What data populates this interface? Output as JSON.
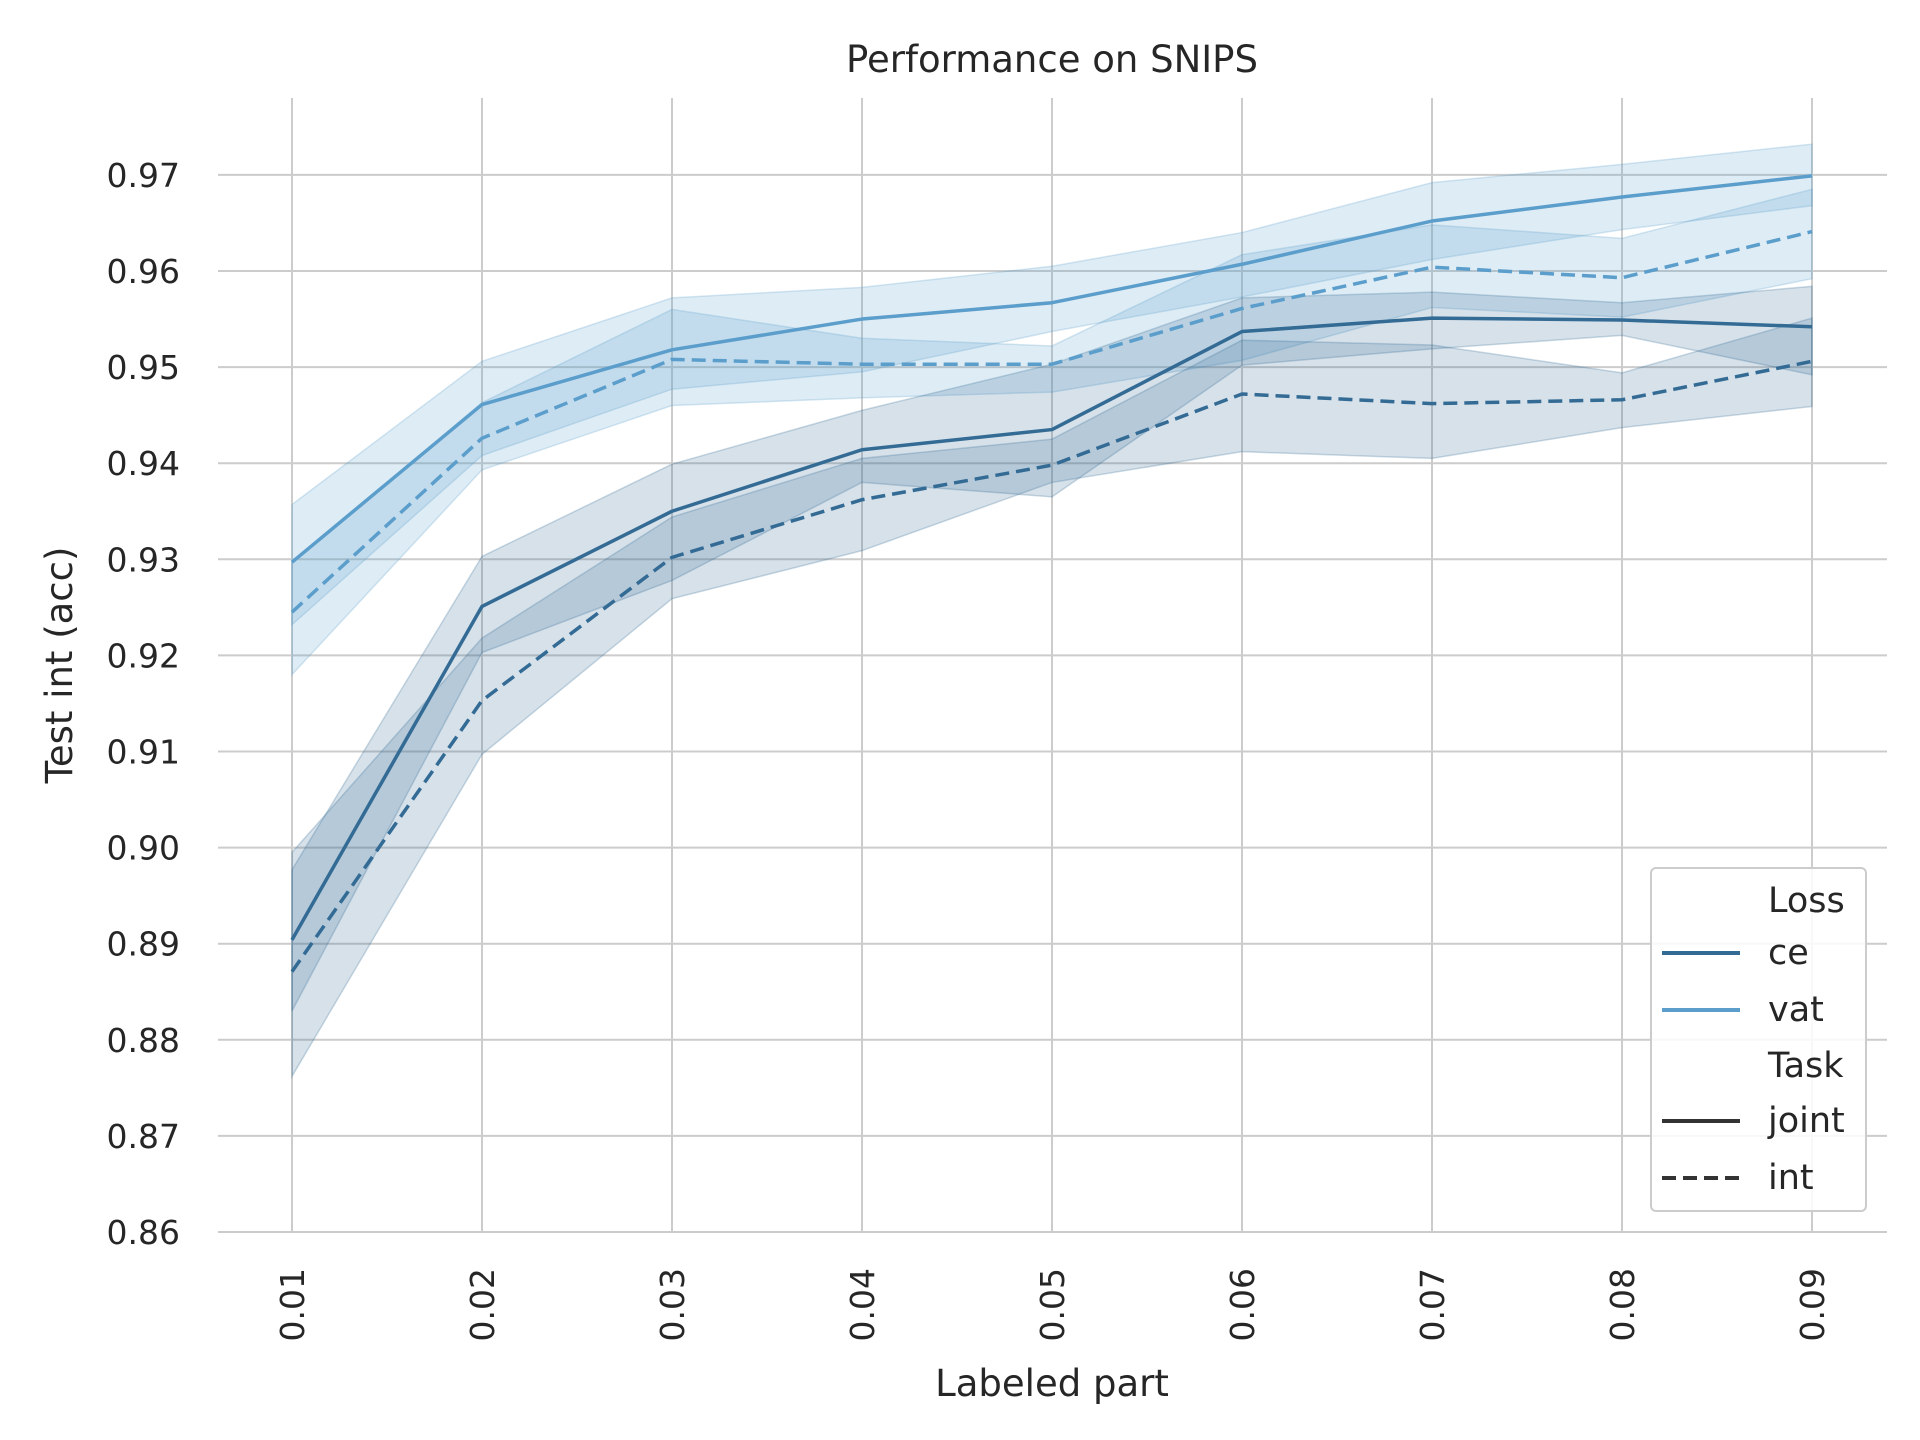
{
  "chart_data": {
    "type": "line",
    "title": "Performance on SNIPS",
    "xlabel": "Labeled part",
    "ylabel": "Test int (acc)",
    "x": [
      0.01,
      0.02,
      0.03,
      0.04,
      0.05,
      0.06,
      0.07,
      0.08,
      0.09
    ],
    "x_tick_labels": [
      "0.01",
      "0.02",
      "0.03",
      "0.04",
      "0.05",
      "0.06",
      "0.07",
      "0.08",
      "0.09"
    ],
    "ylim": [
      0.86,
      0.97
    ],
    "y_ticks": [
      0.86,
      0.87,
      0.88,
      0.89,
      0.9,
      0.91,
      0.92,
      0.93,
      0.94,
      0.95,
      0.96,
      0.97
    ],
    "y_tick_labels": [
      "0.86",
      "0.87",
      "0.88",
      "0.89",
      "0.90",
      "0.91",
      "0.92",
      "0.93",
      "0.94",
      "0.95",
      "0.96",
      "0.97"
    ],
    "grid": true,
    "legend_position": "bottom-right",
    "colors": {
      "ce": "#336b95",
      "vat": "#5b9ecb"
    },
    "series": [
      {
        "loss": "vat",
        "task": "joint",
        "style": "solid",
        "values": [
          0.9297,
          0.9461,
          0.9518,
          0.955,
          0.9567,
          0.9607,
          0.9652,
          0.9677,
          0.9699
        ],
        "lower": [
          0.9232,
          0.9408,
          0.9477,
          0.9495,
          0.9537,
          0.9573,
          0.9612,
          0.9643,
          0.9668
        ],
        "upper": [
          0.9357,
          0.9506,
          0.9572,
          0.9583,
          0.9605,
          0.964,
          0.9692,
          0.9711,
          0.9732
        ]
      },
      {
        "loss": "vat",
        "task": "int",
        "style": "dashed",
        "values": [
          0.9245,
          0.9426,
          0.9508,
          0.9503,
          0.9503,
          0.9561,
          0.9604,
          0.9593,
          0.9641
        ],
        "lower": [
          0.918,
          0.9393,
          0.946,
          0.9468,
          0.9474,
          0.9507,
          0.9562,
          0.9552,
          0.9592
        ],
        "upper": [
          0.9296,
          0.9463,
          0.956,
          0.953,
          0.9522,
          0.9617,
          0.9648,
          0.9634,
          0.9685
        ]
      },
      {
        "loss": "ce",
        "task": "joint",
        "style": "solid",
        "values": [
          0.8904,
          0.9251,
          0.935,
          0.9414,
          0.9435,
          0.9537,
          0.9551,
          0.9549,
          0.9542
        ],
        "lower": [
          0.883,
          0.9203,
          0.9278,
          0.938,
          0.9365,
          0.9502,
          0.9519,
          0.9533,
          0.9492
        ],
        "upper": [
          0.8977,
          0.9303,
          0.9399,
          0.9455,
          0.9503,
          0.9572,
          0.9578,
          0.9567,
          0.9584
        ]
      },
      {
        "loss": "ce",
        "task": "int",
        "style": "dashed",
        "values": [
          0.8871,
          0.9153,
          0.9302,
          0.9362,
          0.9398,
          0.9472,
          0.9462,
          0.9466,
          0.9506
        ],
        "lower": [
          0.8762,
          0.9097,
          0.9259,
          0.9309,
          0.938,
          0.9412,
          0.9405,
          0.9437,
          0.9459
        ],
        "upper": [
          0.8995,
          0.9218,
          0.9344,
          0.9405,
          0.9425,
          0.9528,
          0.9523,
          0.9494,
          0.9551
        ]
      }
    ],
    "legend": {
      "loss_title": "Loss",
      "loss_items": [
        {
          "label": "ce",
          "key": "ce"
        },
        {
          "label": "vat",
          "key": "vat"
        }
      ],
      "task_title": "Task",
      "task_items": [
        {
          "label": "joint",
          "style": "solid"
        },
        {
          "label": "int",
          "style": "dashed"
        }
      ]
    }
  }
}
